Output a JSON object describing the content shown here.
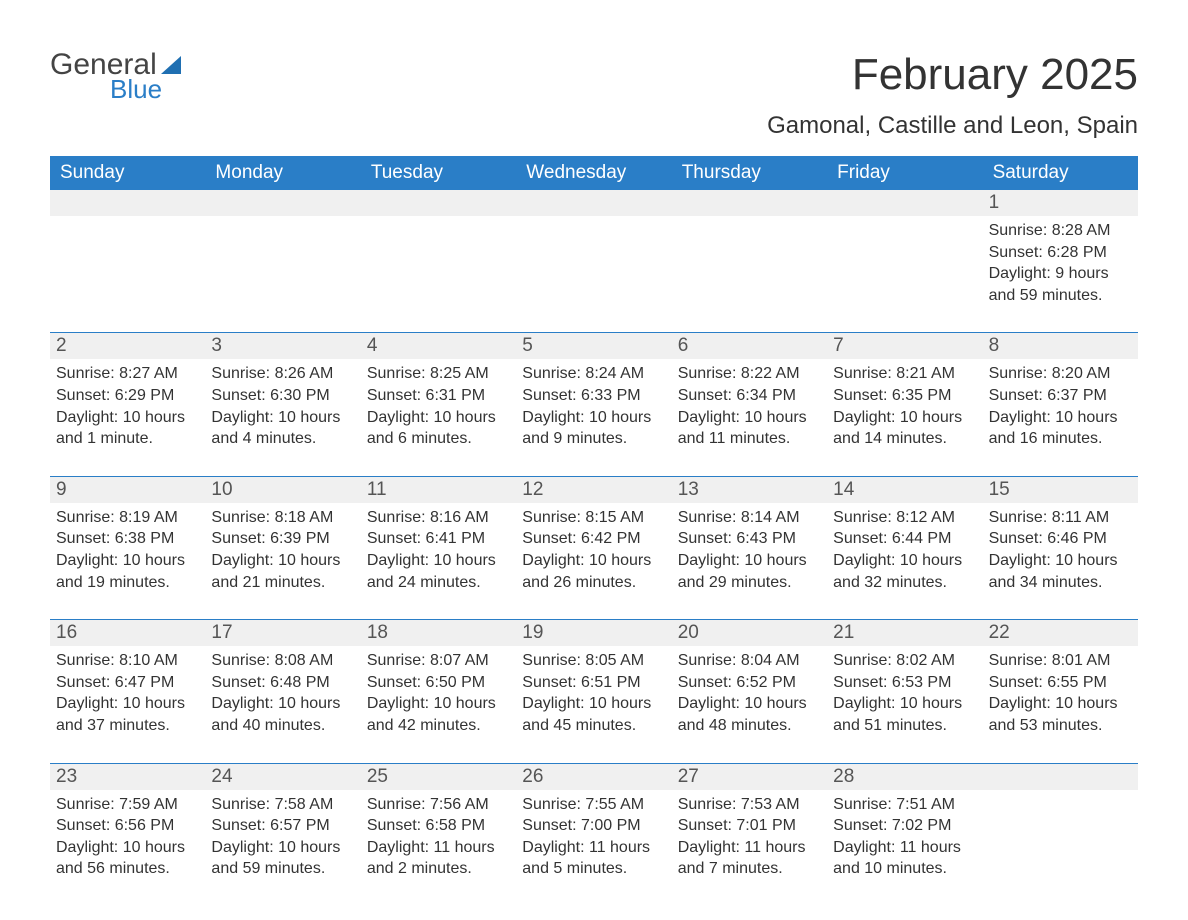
{
  "brand": {
    "part1": "General",
    "part2": "Blue"
  },
  "title": "February 2025",
  "location": "Gamonal, Castille and Leon, Spain",
  "colors": {
    "header_bg": "#2a7ec7",
    "header_text": "#ffffff",
    "daynum_bg": "#f0f0f0",
    "border": "#2a7ec7",
    "text": "#333333",
    "brand_blue": "#1f6fb2"
  },
  "weekdays": [
    "Sunday",
    "Monday",
    "Tuesday",
    "Wednesday",
    "Thursday",
    "Friday",
    "Saturday"
  ],
  "weeks": [
    [
      {
        "day": "",
        "sunrise": "",
        "sunset": "",
        "daylight": ""
      },
      {
        "day": "",
        "sunrise": "",
        "sunset": "",
        "daylight": ""
      },
      {
        "day": "",
        "sunrise": "",
        "sunset": "",
        "daylight": ""
      },
      {
        "day": "",
        "sunrise": "",
        "sunset": "",
        "daylight": ""
      },
      {
        "day": "",
        "sunrise": "",
        "sunset": "",
        "daylight": ""
      },
      {
        "day": "",
        "sunrise": "",
        "sunset": "",
        "daylight": ""
      },
      {
        "day": "1",
        "sunrise": "Sunrise: 8:28 AM",
        "sunset": "Sunset: 6:28 PM",
        "daylight": "Daylight: 9 hours and 59 minutes."
      }
    ],
    [
      {
        "day": "2",
        "sunrise": "Sunrise: 8:27 AM",
        "sunset": "Sunset: 6:29 PM",
        "daylight": "Daylight: 10 hours and 1 minute."
      },
      {
        "day": "3",
        "sunrise": "Sunrise: 8:26 AM",
        "sunset": "Sunset: 6:30 PM",
        "daylight": "Daylight: 10 hours and 4 minutes."
      },
      {
        "day": "4",
        "sunrise": "Sunrise: 8:25 AM",
        "sunset": "Sunset: 6:31 PM",
        "daylight": "Daylight: 10 hours and 6 minutes."
      },
      {
        "day": "5",
        "sunrise": "Sunrise: 8:24 AM",
        "sunset": "Sunset: 6:33 PM",
        "daylight": "Daylight: 10 hours and 9 minutes."
      },
      {
        "day": "6",
        "sunrise": "Sunrise: 8:22 AM",
        "sunset": "Sunset: 6:34 PM",
        "daylight": "Daylight: 10 hours and 11 minutes."
      },
      {
        "day": "7",
        "sunrise": "Sunrise: 8:21 AM",
        "sunset": "Sunset: 6:35 PM",
        "daylight": "Daylight: 10 hours and 14 minutes."
      },
      {
        "day": "8",
        "sunrise": "Sunrise: 8:20 AM",
        "sunset": "Sunset: 6:37 PM",
        "daylight": "Daylight: 10 hours and 16 minutes."
      }
    ],
    [
      {
        "day": "9",
        "sunrise": "Sunrise: 8:19 AM",
        "sunset": "Sunset: 6:38 PM",
        "daylight": "Daylight: 10 hours and 19 minutes."
      },
      {
        "day": "10",
        "sunrise": "Sunrise: 8:18 AM",
        "sunset": "Sunset: 6:39 PM",
        "daylight": "Daylight: 10 hours and 21 minutes."
      },
      {
        "day": "11",
        "sunrise": "Sunrise: 8:16 AM",
        "sunset": "Sunset: 6:41 PM",
        "daylight": "Daylight: 10 hours and 24 minutes."
      },
      {
        "day": "12",
        "sunrise": "Sunrise: 8:15 AM",
        "sunset": "Sunset: 6:42 PM",
        "daylight": "Daylight: 10 hours and 26 minutes."
      },
      {
        "day": "13",
        "sunrise": "Sunrise: 8:14 AM",
        "sunset": "Sunset: 6:43 PM",
        "daylight": "Daylight: 10 hours and 29 minutes."
      },
      {
        "day": "14",
        "sunrise": "Sunrise: 8:12 AM",
        "sunset": "Sunset: 6:44 PM",
        "daylight": "Daylight: 10 hours and 32 minutes."
      },
      {
        "day": "15",
        "sunrise": "Sunrise: 8:11 AM",
        "sunset": "Sunset: 6:46 PM",
        "daylight": "Daylight: 10 hours and 34 minutes."
      }
    ],
    [
      {
        "day": "16",
        "sunrise": "Sunrise: 8:10 AM",
        "sunset": "Sunset: 6:47 PM",
        "daylight": "Daylight: 10 hours and 37 minutes."
      },
      {
        "day": "17",
        "sunrise": "Sunrise: 8:08 AM",
        "sunset": "Sunset: 6:48 PM",
        "daylight": "Daylight: 10 hours and 40 minutes."
      },
      {
        "day": "18",
        "sunrise": "Sunrise: 8:07 AM",
        "sunset": "Sunset: 6:50 PM",
        "daylight": "Daylight: 10 hours and 42 minutes."
      },
      {
        "day": "19",
        "sunrise": "Sunrise: 8:05 AM",
        "sunset": "Sunset: 6:51 PM",
        "daylight": "Daylight: 10 hours and 45 minutes."
      },
      {
        "day": "20",
        "sunrise": "Sunrise: 8:04 AM",
        "sunset": "Sunset: 6:52 PM",
        "daylight": "Daylight: 10 hours and 48 minutes."
      },
      {
        "day": "21",
        "sunrise": "Sunrise: 8:02 AM",
        "sunset": "Sunset: 6:53 PM",
        "daylight": "Daylight: 10 hours and 51 minutes."
      },
      {
        "day": "22",
        "sunrise": "Sunrise: 8:01 AM",
        "sunset": "Sunset: 6:55 PM",
        "daylight": "Daylight: 10 hours and 53 minutes."
      }
    ],
    [
      {
        "day": "23",
        "sunrise": "Sunrise: 7:59 AM",
        "sunset": "Sunset: 6:56 PM",
        "daylight": "Daylight: 10 hours and 56 minutes."
      },
      {
        "day": "24",
        "sunrise": "Sunrise: 7:58 AM",
        "sunset": "Sunset: 6:57 PM",
        "daylight": "Daylight: 10 hours and 59 minutes."
      },
      {
        "day": "25",
        "sunrise": "Sunrise: 7:56 AM",
        "sunset": "Sunset: 6:58 PM",
        "daylight": "Daylight: 11 hours and 2 minutes."
      },
      {
        "day": "26",
        "sunrise": "Sunrise: 7:55 AM",
        "sunset": "Sunset: 7:00 PM",
        "daylight": "Daylight: 11 hours and 5 minutes."
      },
      {
        "day": "27",
        "sunrise": "Sunrise: 7:53 AM",
        "sunset": "Sunset: 7:01 PM",
        "daylight": "Daylight: 11 hours and 7 minutes."
      },
      {
        "day": "28",
        "sunrise": "Sunrise: 7:51 AM",
        "sunset": "Sunset: 7:02 PM",
        "daylight": "Daylight: 11 hours and 10 minutes."
      },
      {
        "day": "",
        "sunrise": "",
        "sunset": "",
        "daylight": ""
      }
    ]
  ]
}
